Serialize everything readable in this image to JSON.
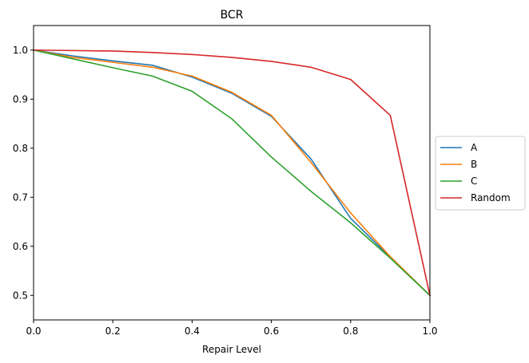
{
  "chart_data": {
    "type": "line",
    "title": "BCR",
    "xlabel": "Repair Level",
    "ylabel": "",
    "xlim": [
      0.0,
      1.0
    ],
    "ylim": [
      0.45,
      1.05
    ],
    "x": [
      0.0,
      0.1,
      0.2,
      0.3,
      0.4,
      0.5,
      0.6,
      0.7,
      0.8,
      0.9,
      1.0
    ],
    "xticks": [
      0.0,
      0.2,
      0.4,
      0.6,
      0.8,
      1.0
    ],
    "xtick_labels": [
      "0.0",
      "0.2",
      "0.4",
      "0.6",
      "0.8",
      "1.0"
    ],
    "yticks": [
      0.5,
      0.6,
      0.7,
      0.8,
      0.9,
      1.0
    ],
    "ytick_labels": [
      "0.5",
      "0.6",
      "0.7",
      "0.8",
      "0.9",
      "1.0"
    ],
    "grid": false,
    "legend_position": "center-right outside",
    "series": [
      {
        "name": "A",
        "color": "#1f77b4",
        "values": [
          1.0,
          0.988,
          0.978,
          0.969,
          0.945,
          0.912,
          0.865,
          0.778,
          0.657,
          0.578,
          0.5
        ]
      },
      {
        "name": "B",
        "color": "#ff7f0e",
        "values": [
          1.0,
          0.985,
          0.975,
          0.965,
          0.947,
          0.914,
          0.867,
          0.771,
          0.668,
          0.579,
          0.5
        ]
      },
      {
        "name": "C",
        "color": "#2ca02c",
        "values": [
          1.0,
          0.982,
          0.964,
          0.947,
          0.916,
          0.86,
          0.782,
          0.712,
          0.648,
          0.576,
          0.5
        ]
      },
      {
        "name": "Random",
        "color": "#d62728",
        "values": [
          1.0,
          0.999,
          0.998,
          0.995,
          0.991,
          0.985,
          0.977,
          0.965,
          0.94,
          0.867,
          0.5
        ]
      }
    ]
  }
}
